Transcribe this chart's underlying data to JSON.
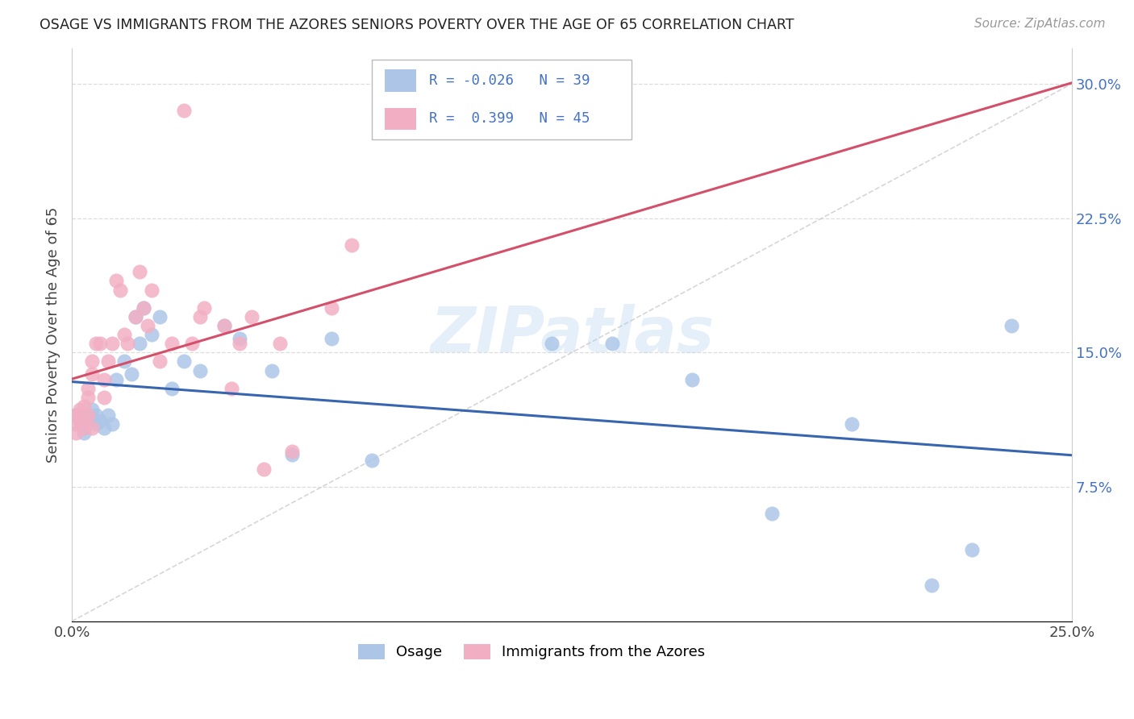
{
  "title": "OSAGE VS IMMIGRANTS FROM THE AZORES SENIORS POVERTY OVER THE AGE OF 65 CORRELATION CHART",
  "source": "Source: ZipAtlas.com",
  "ylabel": "Seniors Poverty Over the Age of 65",
  "xlim": [
    0.0,
    0.25
  ],
  "ylim": [
    0.0,
    0.32
  ],
  "xticks": [
    0.0,
    0.05,
    0.1,
    0.15,
    0.2,
    0.25
  ],
  "xticklabels": [
    "0.0%",
    "",
    "",
    "",
    "",
    "25.0%"
  ],
  "yticks": [
    0.0,
    0.075,
    0.15,
    0.225,
    0.3
  ],
  "yticklabels_right": [
    "",
    "7.5%",
    "15.0%",
    "22.5%",
    "30.0%"
  ],
  "legend_labels": [
    "Osage",
    "Immigrants from the Azores"
  ],
  "color_osage": "#adc6e8",
  "color_azores": "#f2afc3",
  "color_osage_line": "#3865b0",
  "color_azores_line": "#d4506a",
  "color_diagonal": "#cccccc",
  "color_text_blue": "#4472c4",
  "watermark": "ZIPatlas",
  "osage_x": [
    0.001,
    0.002,
    0.003,
    0.003,
    0.004,
    0.004,
    0.005,
    0.005,
    0.006,
    0.006,
    0.007,
    0.008,
    0.009,
    0.01,
    0.011,
    0.013,
    0.015,
    0.016,
    0.017,
    0.018,
    0.02,
    0.022,
    0.025,
    0.028,
    0.032,
    0.038,
    0.042,
    0.05,
    0.055,
    0.065,
    0.075,
    0.12,
    0.135,
    0.155,
    0.175,
    0.195,
    0.215,
    0.225,
    0.235
  ],
  "osage_y": [
    0.115,
    0.112,
    0.108,
    0.105,
    0.115,
    0.112,
    0.118,
    0.113,
    0.115,
    0.11,
    0.112,
    0.108,
    0.115,
    0.11,
    0.135,
    0.145,
    0.138,
    0.17,
    0.155,
    0.175,
    0.16,
    0.17,
    0.13,
    0.145,
    0.14,
    0.165,
    0.158,
    0.14,
    0.093,
    0.158,
    0.09,
    0.155,
    0.155,
    0.135,
    0.06,
    0.11,
    0.02,
    0.04,
    0.165
  ],
  "azores_x": [
    0.001,
    0.001,
    0.001,
    0.002,
    0.002,
    0.002,
    0.003,
    0.003,
    0.003,
    0.004,
    0.004,
    0.004,
    0.005,
    0.005,
    0.005,
    0.006,
    0.007,
    0.008,
    0.008,
    0.009,
    0.01,
    0.011,
    0.012,
    0.013,
    0.014,
    0.016,
    0.017,
    0.018,
    0.019,
    0.02,
    0.022,
    0.025,
    0.028,
    0.03,
    0.032,
    0.033,
    0.038,
    0.04,
    0.042,
    0.045,
    0.048,
    0.052,
    0.055,
    0.065,
    0.07
  ],
  "azores_y": [
    0.11,
    0.105,
    0.115,
    0.115,
    0.118,
    0.112,
    0.12,
    0.108,
    0.113,
    0.125,
    0.13,
    0.115,
    0.145,
    0.138,
    0.108,
    0.155,
    0.155,
    0.135,
    0.125,
    0.145,
    0.155,
    0.19,
    0.185,
    0.16,
    0.155,
    0.17,
    0.195,
    0.175,
    0.165,
    0.185,
    0.145,
    0.155,
    0.285,
    0.155,
    0.17,
    0.175,
    0.165,
    0.13,
    0.155,
    0.17,
    0.085,
    0.155,
    0.095,
    0.175,
    0.21
  ]
}
